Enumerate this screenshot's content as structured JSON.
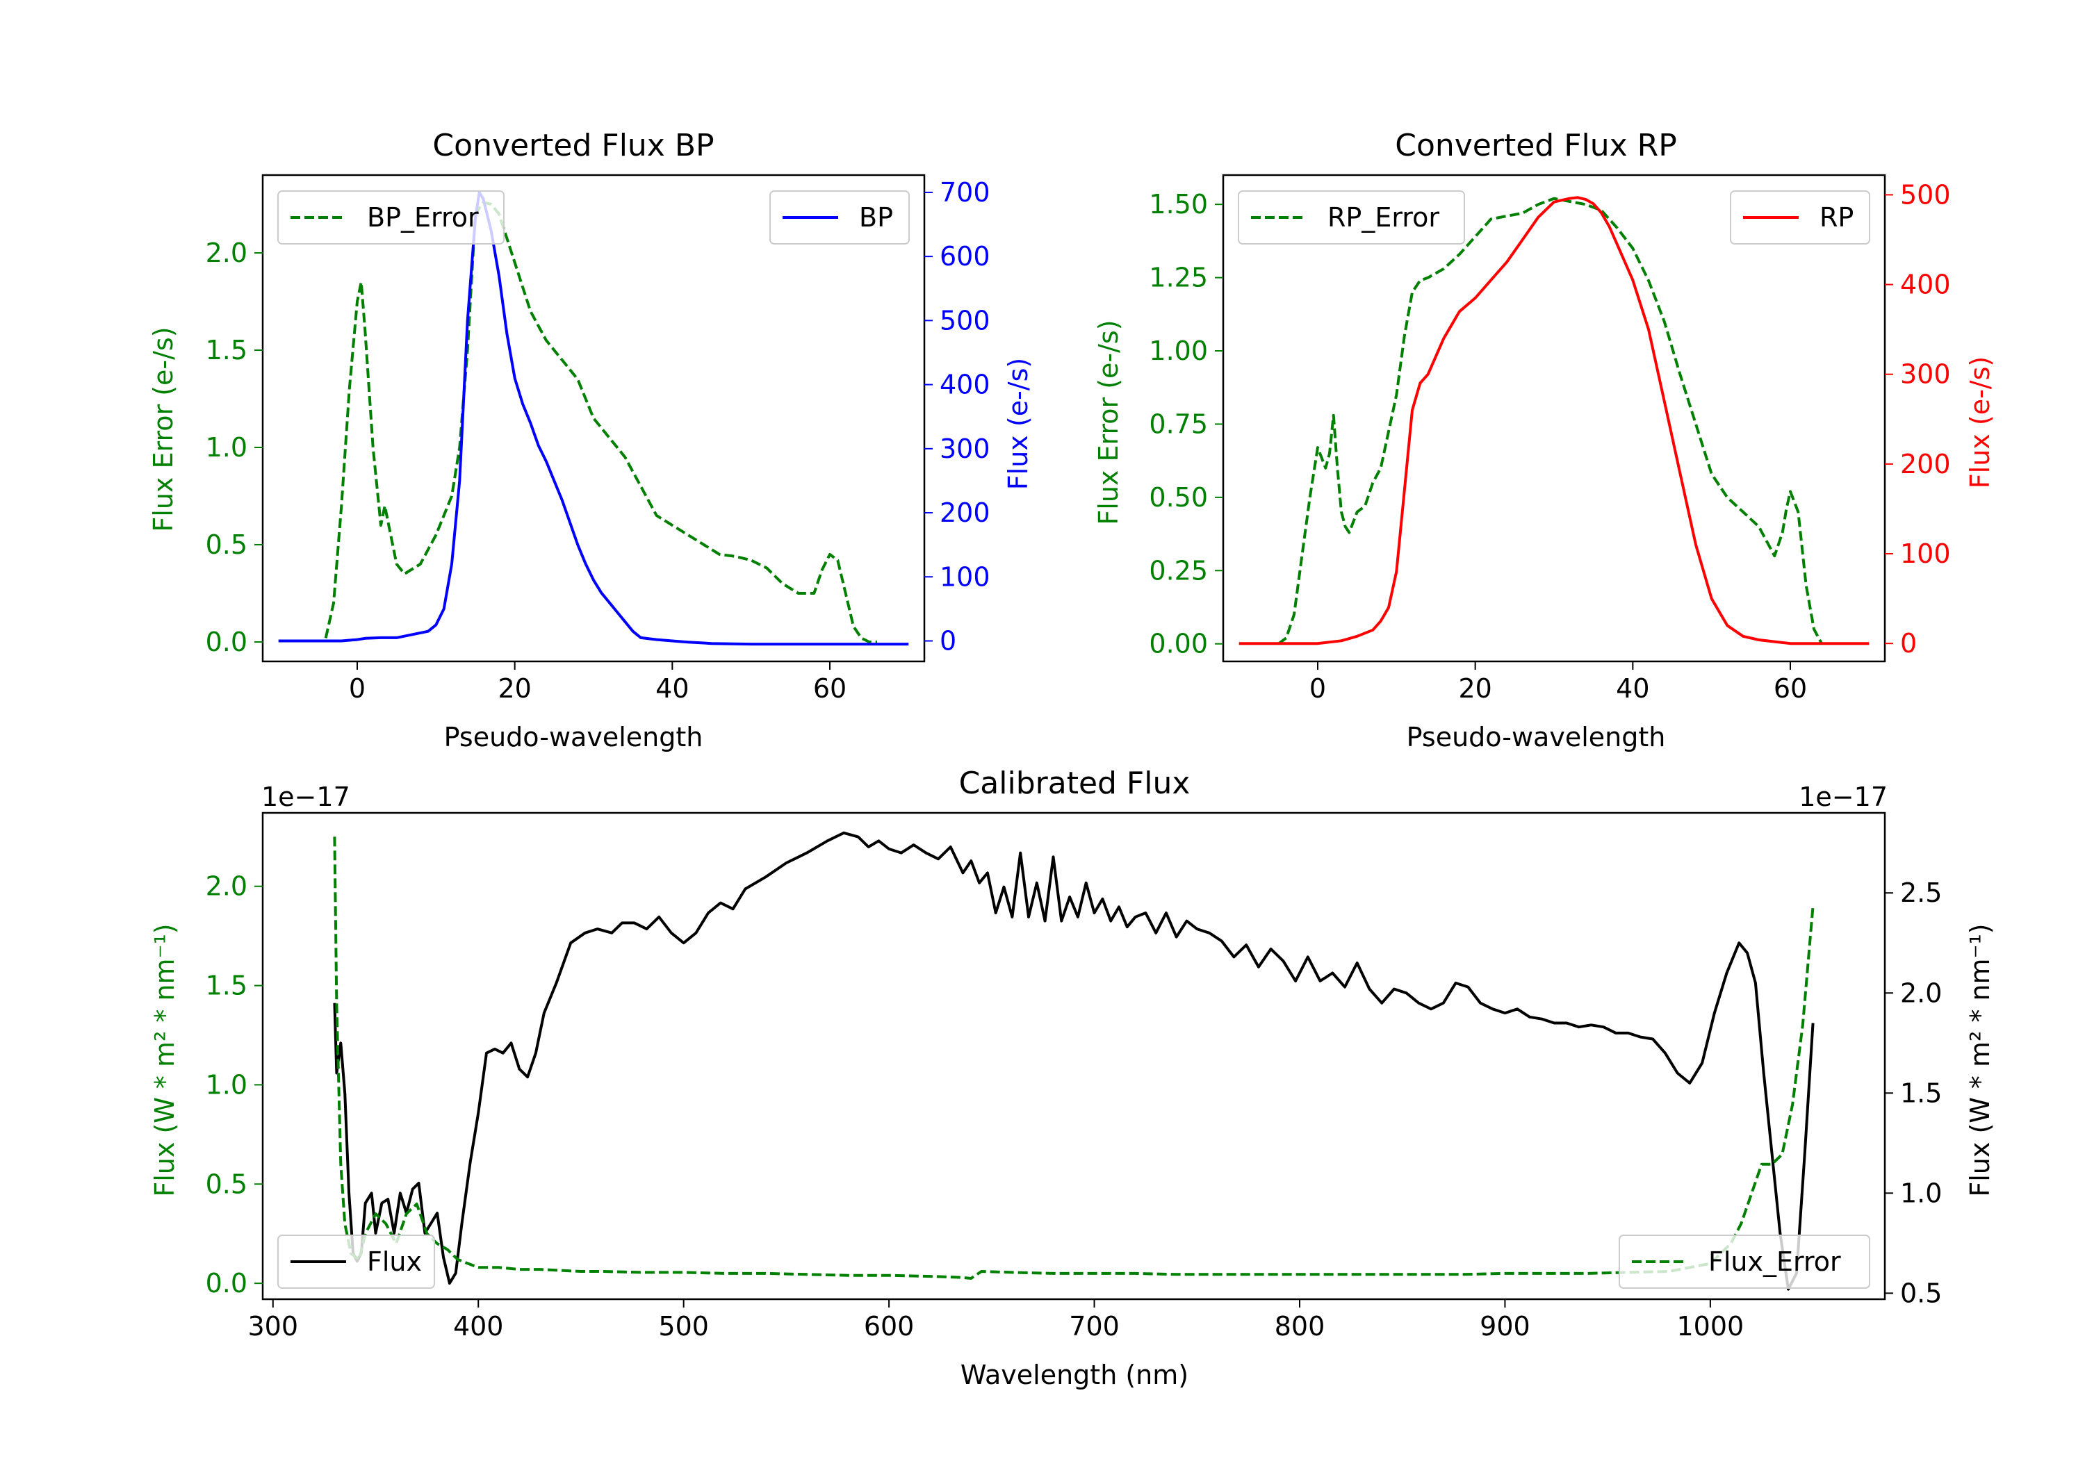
{
  "colors": {
    "error": "#008000",
    "bp": "#0000ff",
    "rp": "#ff0000",
    "flux": "#000000",
    "axes": "#000000"
  },
  "chart_data": [
    {
      "id": "bp",
      "type": "line",
      "title": "Converted Flux BP",
      "xlabel": "Pseudo-wavelength",
      "xlim": [
        -12,
        72
      ],
      "xticks": [
        0,
        20,
        40,
        60
      ],
      "xtick_labels": [
        "0",
        "20",
        "40",
        "60"
      ],
      "left_axis": {
        "label": "Flux Error (e-/s)",
        "ylim": [
          -0.1,
          2.4
        ],
        "ticks": [
          0.0,
          0.5,
          1.0,
          1.5,
          2.0
        ],
        "tick_labels": [
          "0.0",
          "0.5",
          "1.0",
          "1.5",
          "2.0"
        ]
      },
      "right_axis": {
        "label": "Flux (e-/s)",
        "ylim": [
          -32,
          727
        ],
        "ticks": [
          0,
          100,
          200,
          300,
          400,
          500,
          600,
          700
        ],
        "tick_labels": [
          "0",
          "100",
          "200",
          "300",
          "400",
          "500",
          "600",
          "700"
        ]
      },
      "series": [
        {
          "name": "BP_Error",
          "axis": "left",
          "style": "dashed",
          "color": "#008000",
          "x": [
            -4,
            -3,
            -2,
            -1,
            0,
            0.5,
            1,
            2,
            3,
            3.5,
            4,
            5,
            6,
            8,
            10,
            12,
            13,
            14,
            15,
            16,
            17,
            18,
            20,
            22,
            24,
            26,
            28,
            30,
            32,
            34,
            36,
            38,
            40,
            42,
            44,
            46,
            48,
            50,
            52,
            54,
            56,
            58,
            59,
            60,
            61,
            62,
            63,
            64,
            65,
            66
          ],
          "y": [
            0.02,
            0.2,
            0.7,
            1.3,
            1.75,
            1.85,
            1.6,
            1.0,
            0.6,
            0.7,
            0.6,
            0.4,
            0.35,
            0.4,
            0.55,
            0.75,
            1.0,
            1.5,
            2.2,
            2.26,
            2.25,
            2.2,
            1.95,
            1.7,
            1.55,
            1.45,
            1.35,
            1.15,
            1.05,
            0.95,
            0.8,
            0.65,
            0.6,
            0.55,
            0.5,
            0.45,
            0.44,
            0.42,
            0.38,
            0.3,
            0.25,
            0.25,
            0.37,
            0.45,
            0.42,
            0.25,
            0.08,
            0.02,
            0.0,
            0.0
          ]
        },
        {
          "name": "BP",
          "axis": "right",
          "style": "solid",
          "color": "#0000ff",
          "x": [
            -10,
            -5,
            -2,
            0,
            1,
            3,
            5,
            7,
            9,
            10,
            11,
            12,
            13,
            14,
            15,
            15.5,
            16,
            17,
            18,
            19,
            20,
            21,
            22,
            23,
            24,
            25,
            26,
            27,
            28,
            29,
            30,
            31,
            32,
            33,
            34,
            35,
            36,
            38,
            40,
            42,
            45,
            50,
            55,
            60,
            65,
            70
          ],
          "y": [
            0,
            0,
            0,
            2,
            4,
            5,
            5,
            10,
            15,
            25,
            50,
            120,
            250,
            500,
            660,
            700,
            690,
            640,
            570,
            480,
            410,
            370,
            340,
            305,
            280,
            250,
            220,
            185,
            150,
            120,
            95,
            75,
            60,
            45,
            30,
            15,
            5,
            2,
            0,
            -2,
            -4,
            -5,
            -5,
            -5,
            -5,
            -5
          ]
        }
      ]
    },
    {
      "id": "rp",
      "type": "line",
      "title": "Converted Flux RP",
      "xlabel": "Pseudo-wavelength",
      "xlim": [
        -12,
        72
      ],
      "xticks": [
        0,
        20,
        40,
        60
      ],
      "xtick_labels": [
        "0",
        "20",
        "40",
        "60"
      ],
      "left_axis": {
        "label": "Flux Error (e-/s)",
        "ylim": [
          -0.06,
          1.6
        ],
        "ticks": [
          0.0,
          0.25,
          0.5,
          0.75,
          1.0,
          1.25,
          1.5
        ],
        "tick_labels": [
          "0.00",
          "0.25",
          "0.50",
          "0.75",
          "1.00",
          "1.25",
          "1.50"
        ]
      },
      "right_axis": {
        "label": "Flux (e-/s)",
        "ylim": [
          -20,
          522
        ],
        "ticks": [
          0,
          100,
          200,
          300,
          400,
          500
        ],
        "tick_labels": [
          "0",
          "100",
          "200",
          "300",
          "400",
          "500"
        ]
      },
      "series": [
        {
          "name": "RP_Error",
          "axis": "left",
          "style": "dashed",
          "color": "#008000",
          "x": [
            -5,
            -4,
            -3,
            -2,
            -1,
            0,
            1,
            1.5,
            2,
            2.5,
            3,
            3.5,
            4,
            5,
            6,
            7,
            8,
            10,
            11,
            12,
            13,
            14,
            16,
            18,
            20,
            22,
            24,
            26,
            28,
            30,
            32,
            34,
            36,
            38,
            40,
            42,
            44,
            46,
            48,
            50,
            52,
            54,
            56,
            57,
            58,
            59,
            59.5,
            60,
            61,
            62,
            63,
            64
          ],
          "y": [
            0.0,
            0.02,
            0.1,
            0.3,
            0.5,
            0.67,
            0.6,
            0.65,
            0.78,
            0.6,
            0.45,
            0.4,
            0.38,
            0.45,
            0.47,
            0.55,
            0.6,
            0.85,
            1.05,
            1.2,
            1.24,
            1.25,
            1.28,
            1.33,
            1.39,
            1.45,
            1.46,
            1.47,
            1.5,
            1.52,
            1.51,
            1.5,
            1.48,
            1.42,
            1.35,
            1.24,
            1.1,
            0.92,
            0.75,
            0.58,
            0.5,
            0.45,
            0.4,
            0.35,
            0.3,
            0.38,
            0.46,
            0.52,
            0.45,
            0.2,
            0.05,
            0.0
          ]
        },
        {
          "name": "RP",
          "axis": "right",
          "style": "solid",
          "color": "#ff0000",
          "x": [
            -10,
            -5,
            0,
            3,
            5,
            7,
            8,
            9,
            10,
            11,
            12,
            13,
            14,
            16,
            18,
            20,
            22,
            24,
            26,
            28,
            30,
            32,
            33,
            34,
            35,
            36,
            37,
            38,
            40,
            42,
            44,
            46,
            48,
            50,
            52,
            54,
            56,
            58,
            60,
            62,
            64,
            66,
            70
          ],
          "y": [
            0,
            0,
            0,
            3,
            8,
            15,
            25,
            40,
            80,
            170,
            260,
            290,
            300,
            340,
            370,
            385,
            405,
            425,
            450,
            475,
            492,
            496,
            497,
            495,
            490,
            480,
            465,
            445,
            405,
            350,
            270,
            190,
            110,
            50,
            20,
            8,
            4,
            2,
            0,
            0,
            0,
            0,
            0
          ]
        }
      ]
    },
    {
      "id": "calibrated",
      "type": "line",
      "title": "Calibrated Flux",
      "xlabel": "Wavelength (nm)",
      "xlim": [
        295,
        1085
      ],
      "xticks": [
        300,
        400,
        500,
        600,
        700,
        800,
        900,
        1000
      ],
      "xtick_labels": [
        "300",
        "400",
        "500",
        "600",
        "700",
        "800",
        "900",
        "1000"
      ],
      "left_axis": {
        "label": "Flux (W * m² * nm⁻¹)",
        "offset_text": "1e−17",
        "ylim": [
          -0.08,
          2.37
        ],
        "ticks": [
          0.0,
          0.5,
          1.0,
          1.5,
          2.0
        ],
        "tick_labels": [
          "0.0",
          "0.5",
          "1.0",
          "1.5",
          "2.0"
        ]
      },
      "right_axis": {
        "label": "Flux (W * m² * nm⁻¹)",
        "offset_text": "1e−17",
        "ylim": [
          0.47,
          2.9
        ],
        "ticks": [
          0.5,
          1.0,
          1.5,
          2.0,
          2.5
        ],
        "tick_labels": [
          "0.5",
          "1.0",
          "1.5",
          "2.0",
          "2.5"
        ]
      },
      "series": [
        {
          "name": "Flux",
          "axis": "right",
          "style": "solid",
          "color": "#000000",
          "x": [
            330,
            331,
            333,
            335,
            337,
            339,
            341,
            343,
            345,
            348,
            350,
            353,
            356,
            359,
            362,
            365,
            368,
            371,
            374,
            377,
            380,
            383,
            386,
            389,
            392,
            396,
            400,
            404,
            408,
            412,
            416,
            420,
            424,
            428,
            432,
            438,
            445,
            452,
            458,
            465,
            470,
            476,
            482,
            488,
            494,
            500,
            506,
            512,
            518,
            524,
            530,
            540,
            550,
            560,
            570,
            578,
            585,
            590,
            595,
            600,
            606,
            612,
            618,
            624,
            630,
            636,
            640,
            644,
            648,
            652,
            656,
            660,
            664,
            668,
            672,
            676,
            680,
            684,
            688,
            692,
            696,
            700,
            704,
            708,
            712,
            716,
            720,
            725,
            730,
            735,
            740,
            745,
            750,
            756,
            762,
            768,
            774,
            780,
            786,
            792,
            798,
            804,
            810,
            816,
            822,
            828,
            834,
            840,
            846,
            852,
            858,
            864,
            870,
            876,
            882,
            888,
            894,
            900,
            906,
            912,
            918,
            924,
            930,
            936,
            942,
            948,
            954,
            960,
            966,
            972,
            978,
            984,
            990,
            996,
            1002,
            1008,
            1014,
            1018,
            1022,
            1026,
            1030,
            1034,
            1038,
            1042,
            1046,
            1050
          ],
          "y": [
            1.95,
            1.6,
            1.75,
            1.5,
            1.0,
            0.7,
            0.66,
            0.7,
            0.95,
            1.0,
            0.8,
            0.95,
            0.97,
            0.8,
            1.0,
            0.9,
            1.02,
            1.05,
            0.8,
            0.85,
            0.9,
            0.68,
            0.55,
            0.6,
            0.85,
            1.15,
            1.4,
            1.7,
            1.72,
            1.7,
            1.75,
            1.62,
            1.58,
            1.7,
            1.9,
            2.05,
            2.25,
            2.3,
            2.32,
            2.3,
            2.35,
            2.35,
            2.32,
            2.38,
            2.3,
            2.25,
            2.3,
            2.4,
            2.45,
            2.42,
            2.52,
            2.58,
            2.65,
            2.7,
            2.76,
            2.8,
            2.78,
            2.73,
            2.76,
            2.72,
            2.7,
            2.74,
            2.7,
            2.67,
            2.73,
            2.6,
            2.66,
            2.55,
            2.6,
            2.4,
            2.53,
            2.38,
            2.7,
            2.38,
            2.55,
            2.36,
            2.68,
            2.36,
            2.48,
            2.38,
            2.55,
            2.4,
            2.47,
            2.36,
            2.43,
            2.33,
            2.38,
            2.4,
            2.3,
            2.4,
            2.28,
            2.36,
            2.32,
            2.3,
            2.26,
            2.18,
            2.24,
            2.13,
            2.22,
            2.16,
            2.06,
            2.18,
            2.06,
            2.1,
            2.03,
            2.15,
            2.02,
            1.95,
            2.02,
            2.0,
            1.95,
            1.92,
            1.95,
            2.05,
            2.03,
            1.95,
            1.92,
            1.9,
            1.92,
            1.88,
            1.87,
            1.85,
            1.85,
            1.83,
            1.84,
            1.83,
            1.8,
            1.8,
            1.78,
            1.77,
            1.7,
            1.6,
            1.55,
            1.65,
            1.9,
            2.1,
            2.25,
            2.2,
            2.05,
            1.6,
            1.2,
            0.8,
            0.52,
            0.6,
            1.2,
            1.85
          ]
        },
        {
          "name": "Flux_Error",
          "axis": "left",
          "style": "dashed",
          "color": "#008000",
          "x": [
            330,
            331,
            333,
            335,
            338,
            342,
            345,
            350,
            355,
            360,
            365,
            370,
            375,
            380,
            385,
            390,
            395,
            400,
            410,
            420,
            430,
            440,
            450,
            460,
            480,
            500,
            520,
            540,
            560,
            580,
            600,
            620,
            635,
            640,
            645,
            660,
            680,
            700,
            720,
            740,
            760,
            780,
            800,
            820,
            840,
            860,
            880,
            900,
            920,
            940,
            960,
            980,
            1000,
            1005,
            1010,
            1015,
            1020,
            1025,
            1030,
            1035,
            1040,
            1045,
            1050
          ],
          "y": [
            2.25,
            1.4,
            0.6,
            0.3,
            0.15,
            0.12,
            0.25,
            0.35,
            0.3,
            0.2,
            0.35,
            0.4,
            0.25,
            0.2,
            0.17,
            0.12,
            0.1,
            0.08,
            0.08,
            0.07,
            0.07,
            0.065,
            0.06,
            0.06,
            0.055,
            0.055,
            0.05,
            0.05,
            0.045,
            0.04,
            0.04,
            0.035,
            0.03,
            0.025,
            0.06,
            0.055,
            0.05,
            0.05,
            0.05,
            0.045,
            0.045,
            0.045,
            0.045,
            0.045,
            0.045,
            0.045,
            0.045,
            0.05,
            0.05,
            0.05,
            0.055,
            0.06,
            0.1,
            0.15,
            0.2,
            0.3,
            0.45,
            0.6,
            0.6,
            0.65,
            0.9,
            1.3,
            1.9
          ]
        }
      ]
    }
  ]
}
